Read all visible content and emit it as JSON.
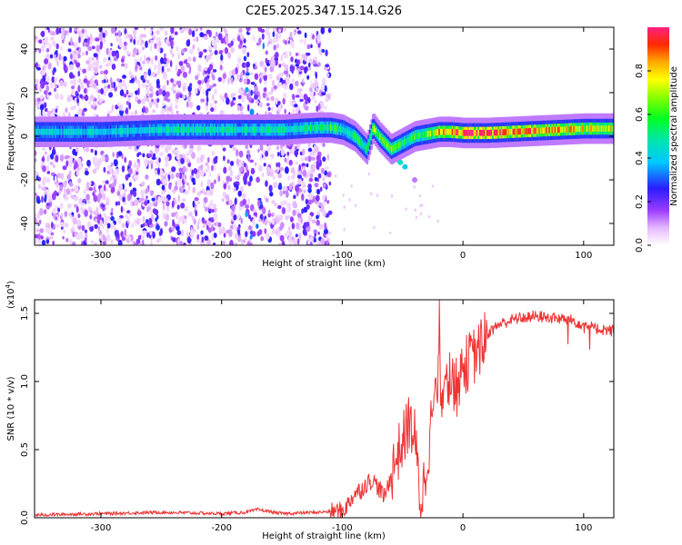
{
  "title": "C2E5.2025.347.15.14.G26",
  "chart_data": [
    {
      "type": "heatmap",
      "xlabel": "Height of straight line (km)",
      "ylabel": "Frequency (Hz)",
      "xlim": [
        -355,
        125
      ],
      "ylim": [
        -50,
        50
      ],
      "xticks": [
        -300,
        -200,
        -100,
        0,
        100
      ],
      "yticks": [
        -40,
        -20,
        0,
        20,
        40
      ],
      "colorbar": {
        "label": "Normalized spectral amplitude",
        "range": [
          0.0,
          1.0
        ],
        "ticks": [
          "0.0",
          "0.2",
          "0.4",
          "0.6",
          "0.8"
        ]
      },
      "noise_region_x": [
        -355,
        -110
      ],
      "ridge": {
        "x": [
          -350,
          -300,
          -250,
          -200,
          -150,
          -120,
          -110,
          -100,
          -90,
          -80,
          -75,
          -70,
          -60,
          -50,
          -40,
          -30,
          -20,
          -10,
          0,
          20,
          40,
          60,
          80,
          100,
          125
        ],
        "freq": [
          2,
          2,
          3,
          3,
          3,
          4,
          4,
          3,
          0,
          -6,
          4,
          0,
          -6,
          -3,
          0,
          1,
          2,
          2,
          1.5,
          1.5,
          2,
          2.5,
          3,
          3.5,
          3.5
        ],
        "amp": [
          0.45,
          0.45,
          0.5,
          0.5,
          0.5,
          0.55,
          0.6,
          0.55,
          0.6,
          0.55,
          0.7,
          0.7,
          0.65,
          0.6,
          0.6,
          0.7,
          0.85,
          0.95,
          1.0,
          1.0,
          0.95,
          0.9,
          0.85,
          0.8,
          0.75
        ]
      }
    },
    {
      "type": "line",
      "xlabel": "Height of straight line (km)",
      "ylabel": "SNR (10 * v/v)",
      "scale_label": "(x10",
      "scale_exp": "4",
      "scale_close": ")",
      "xlim": [
        -355,
        125
      ],
      "ylim": [
        0.0,
        1.6
      ],
      "xticks": [
        -300,
        -200,
        -100,
        0,
        100
      ],
      "yticks": [
        "0.0",
        "0.5",
        "1.0",
        "1.5"
      ],
      "color": "#ee3333",
      "series": [
        {
          "name": "SNR",
          "x": [
            -355,
            -300,
            -250,
            -200,
            -180,
            -170,
            -150,
            -120,
            -100,
            -95,
            -90,
            -85,
            -80,
            -75,
            -70,
            -65,
            -60,
            -55,
            -50,
            -45,
            -40,
            -35,
            -30,
            -25,
            -20,
            -15,
            -10,
            -5,
            0,
            5,
            10,
            15,
            20,
            30,
            40,
            50,
            60,
            70,
            80,
            90,
            100,
            110,
            125
          ],
          "values": [
            0.02,
            0.03,
            0.04,
            0.03,
            0.04,
            0.06,
            0.03,
            0.04,
            0.05,
            0.1,
            0.18,
            0.2,
            0.25,
            0.28,
            0.22,
            0.15,
            0.3,
            0.45,
            0.55,
            0.7,
            0.6,
            0.1,
            0.4,
            0.8,
            1.0,
            0.9,
            1.05,
            0.95,
            1.1,
            1.15,
            1.2,
            1.25,
            1.35,
            1.42,
            1.45,
            1.47,
            1.48,
            1.47,
            1.46,
            1.45,
            1.42,
            1.39,
            1.37
          ]
        }
      ]
    }
  ]
}
